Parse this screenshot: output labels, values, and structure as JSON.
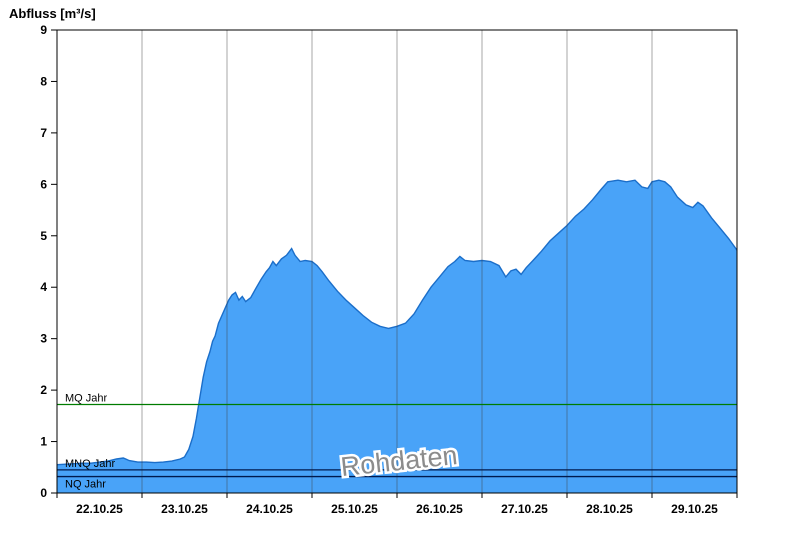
{
  "title": "Abfluss [m³/s]",
  "watermark": "Rohdaten",
  "chart_data": {
    "type": "area",
    "title": "Abfluss [m³/s]",
    "ylabel": "Abfluss [m³/s]",
    "ylim": [
      0,
      9
    ],
    "yticks": [
      0,
      1,
      2,
      3,
      4,
      5,
      6,
      7,
      8,
      9
    ],
    "x_labels": [
      "22.10.25",
      "23.10.25",
      "24.10.25",
      "25.10.25",
      "26.10.25",
      "27.10.25",
      "28.10.25",
      "29.10.25"
    ],
    "x_domain_days": [
      0,
      8
    ],
    "grid": "vertical-day-lines",
    "legend": "none",
    "watermark": "Rohdaten",
    "colors": {
      "area_fill": "#49A3F8",
      "area_stroke": "#1B6EC9",
      "mq_line": "#007C00",
      "low_line": "#001A4D",
      "gridline": "#3C3C3C",
      "text": "#000000"
    },
    "reference_lines": [
      {
        "label": "MQ Jahr",
        "value": 1.72,
        "color": "#007C00",
        "label_position": "above"
      },
      {
        "label": "MNQ Jahr",
        "value": 0.45,
        "color": "#001A4D",
        "label_position": "above"
      },
      {
        "label": "NQ Jahr",
        "value": 0.32,
        "color": "#001A4D",
        "label_position": "below"
      }
    ],
    "series": [
      {
        "name": "Abfluss Rohdaten",
        "points": [
          [
            0.0,
            0.55
          ],
          [
            0.1,
            0.56
          ],
          [
            0.2,
            0.57
          ],
          [
            0.3,
            0.58
          ],
          [
            0.4,
            0.58
          ],
          [
            0.5,
            0.6
          ],
          [
            0.6,
            0.62
          ],
          [
            0.7,
            0.66
          ],
          [
            0.78,
            0.68
          ],
          [
            0.85,
            0.63
          ],
          [
            0.95,
            0.6
          ],
          [
            1.05,
            0.6
          ],
          [
            1.15,
            0.59
          ],
          [
            1.25,
            0.6
          ],
          [
            1.35,
            0.62
          ],
          [
            1.45,
            0.66
          ],
          [
            1.5,
            0.7
          ],
          [
            1.55,
            0.85
          ],
          [
            1.6,
            1.1
          ],
          [
            1.64,
            1.45
          ],
          [
            1.68,
            1.85
          ],
          [
            1.72,
            2.25
          ],
          [
            1.76,
            2.55
          ],
          [
            1.8,
            2.75
          ],
          [
            1.83,
            2.95
          ],
          [
            1.86,
            3.05
          ],
          [
            1.9,
            3.3
          ],
          [
            1.94,
            3.45
          ],
          [
            1.98,
            3.6
          ],
          [
            2.02,
            3.75
          ],
          [
            2.06,
            3.85
          ],
          [
            2.1,
            3.9
          ],
          [
            2.14,
            3.75
          ],
          [
            2.18,
            3.82
          ],
          [
            2.22,
            3.72
          ],
          [
            2.28,
            3.8
          ],
          [
            2.34,
            3.98
          ],
          [
            2.4,
            4.15
          ],
          [
            2.46,
            4.3
          ],
          [
            2.5,
            4.38
          ],
          [
            2.54,
            4.5
          ],
          [
            2.58,
            4.42
          ],
          [
            2.64,
            4.55
          ],
          [
            2.7,
            4.62
          ],
          [
            2.76,
            4.75
          ],
          [
            2.8,
            4.62
          ],
          [
            2.86,
            4.5
          ],
          [
            2.92,
            4.52
          ],
          [
            3.0,
            4.5
          ],
          [
            3.06,
            4.42
          ],
          [
            3.12,
            4.3
          ],
          [
            3.2,
            4.12
          ],
          [
            3.3,
            3.92
          ],
          [
            3.4,
            3.75
          ],
          [
            3.5,
            3.6
          ],
          [
            3.6,
            3.45
          ],
          [
            3.7,
            3.32
          ],
          [
            3.8,
            3.24
          ],
          [
            3.9,
            3.2
          ],
          [
            4.0,
            3.24
          ],
          [
            4.1,
            3.3
          ],
          [
            4.2,
            3.48
          ],
          [
            4.3,
            3.75
          ],
          [
            4.4,
            4.0
          ],
          [
            4.5,
            4.2
          ],
          [
            4.6,
            4.4
          ],
          [
            4.68,
            4.5
          ],
          [
            4.74,
            4.6
          ],
          [
            4.8,
            4.52
          ],
          [
            4.9,
            4.5
          ],
          [
            5.0,
            4.52
          ],
          [
            5.1,
            4.5
          ],
          [
            5.2,
            4.42
          ],
          [
            5.28,
            4.2
          ],
          [
            5.34,
            4.32
          ],
          [
            5.4,
            4.35
          ],
          [
            5.46,
            4.25
          ],
          [
            5.52,
            4.38
          ],
          [
            5.6,
            4.52
          ],
          [
            5.7,
            4.7
          ],
          [
            5.8,
            4.9
          ],
          [
            5.9,
            5.05
          ],
          [
            6.0,
            5.2
          ],
          [
            6.1,
            5.38
          ],
          [
            6.2,
            5.52
          ],
          [
            6.3,
            5.7
          ],
          [
            6.4,
            5.9
          ],
          [
            6.48,
            6.05
          ],
          [
            6.6,
            6.08
          ],
          [
            6.7,
            6.05
          ],
          [
            6.8,
            6.08
          ],
          [
            6.88,
            5.95
          ],
          [
            6.95,
            5.92
          ],
          [
            7.0,
            6.05
          ],
          [
            7.08,
            6.08
          ],
          [
            7.15,
            6.05
          ],
          [
            7.22,
            5.95
          ],
          [
            7.3,
            5.75
          ],
          [
            7.4,
            5.6
          ],
          [
            7.48,
            5.55
          ],
          [
            7.54,
            5.65
          ],
          [
            7.6,
            5.58
          ],
          [
            7.7,
            5.35
          ],
          [
            7.8,
            5.15
          ],
          [
            7.9,
            4.95
          ],
          [
            8.0,
            4.72
          ]
        ]
      }
    ]
  }
}
